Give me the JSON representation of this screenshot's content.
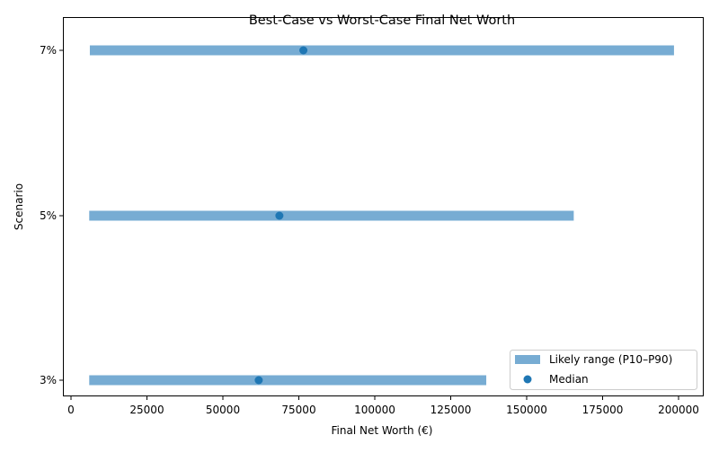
{
  "chart_data": {
    "type": "range",
    "title": "Best-Case vs Worst-Case Final Net Worth",
    "xlabel": "Final Net Worth (€)",
    "ylabel": "Scenario",
    "xlim": [
      -1500,
      208000
    ],
    "xticks": [
      0,
      25000,
      50000,
      75000,
      100000,
      125000,
      150000,
      175000,
      200000
    ],
    "xtick_labels": [
      "0",
      "25000",
      "50000",
      "75000",
      "100000",
      "125000",
      "150000",
      "175000",
      "200000"
    ],
    "categories": [
      "3%",
      "5%",
      "7%"
    ],
    "series": [
      {
        "name": "Likely range (P10–P90)",
        "kind": "range_bar",
        "color": "#77acd3",
        "low": [
          6000,
          6000,
          6200
        ],
        "high": [
          136700,
          165500,
          198500
        ]
      },
      {
        "name": "Median",
        "kind": "scatter",
        "color": "#1f77b4",
        "values": [
          61800,
          68600,
          76500
        ]
      }
    ],
    "grid": false,
    "legend": {
      "position": "lower right",
      "entries": [
        "Likely range (P10–P90)",
        "Median"
      ]
    }
  }
}
